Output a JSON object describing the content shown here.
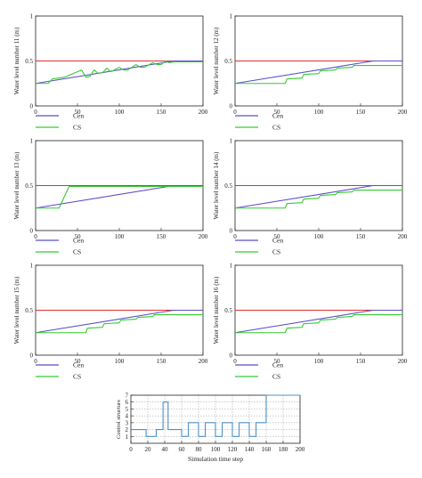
{
  "chart_data": [
    {
      "type": "line",
      "ylabel": "Water level number 11 (m)",
      "xlim": [
        0,
        200
      ],
      "ylim": [
        0,
        1
      ],
      "xticks": [
        0,
        50,
        100,
        150,
        200
      ],
      "yticks": [
        0,
        0.5,
        1
      ],
      "legend_position": "below",
      "series": [
        {
          "name": "",
          "color": "#e03030",
          "x": [
            0,
            200
          ],
          "y": [
            0.5,
            0.5
          ]
        },
        {
          "name": "Cen",
          "color": "#5a4fc8",
          "x": [
            0,
            165,
            200
          ],
          "y": [
            0.25,
            0.5,
            0.5
          ]
        },
        {
          "name": "CS",
          "color": "#33cc33",
          "x": [
            0,
            15,
            20,
            35,
            45,
            50,
            55,
            60,
            65,
            70,
            75,
            80,
            85,
            90,
            100,
            105,
            110,
            120,
            125,
            130,
            140,
            145,
            150,
            155,
            160,
            165,
            200
          ],
          "y": [
            0.25,
            0.25,
            0.3,
            0.32,
            0.36,
            0.38,
            0.4,
            0.32,
            0.33,
            0.4,
            0.36,
            0.37,
            0.42,
            0.38,
            0.43,
            0.4,
            0.4,
            0.46,
            0.43,
            0.43,
            0.48,
            0.46,
            0.46,
            0.5,
            0.48,
            0.49,
            0.49
          ]
        }
      ]
    },
    {
      "type": "line",
      "ylabel": "Water level number 12 (m)",
      "xlim": [
        0,
        200
      ],
      "ylim": [
        0,
        1
      ],
      "xticks": [
        0,
        50,
        100,
        150,
        200
      ],
      "yticks": [
        0,
        0.5,
        1
      ],
      "legend_position": "below",
      "series": [
        {
          "name": "",
          "color": "#e03030",
          "x": [
            0,
            200
          ],
          "y": [
            0.5,
            0.5
          ]
        },
        {
          "name": "Cen",
          "color": "#5a4fc8",
          "x": [
            0,
            165,
            200
          ],
          "y": [
            0.25,
            0.5,
            0.5
          ]
        },
        {
          "name": "CS",
          "color": "#33cc33",
          "x": [
            0,
            60,
            62,
            80,
            82,
            100,
            102,
            120,
            122,
            140,
            142,
            160,
            162,
            200
          ],
          "y": [
            0.25,
            0.25,
            0.3,
            0.31,
            0.35,
            0.36,
            0.39,
            0.4,
            0.42,
            0.43,
            0.45,
            0.45,
            0.45,
            0.45
          ]
        }
      ]
    },
    {
      "type": "line",
      "ylabel": "Water level number 13 (m)",
      "xlim": [
        0,
        200
      ],
      "ylim": [
        0,
        1
      ],
      "xticks": [
        0,
        50,
        100,
        150,
        200
      ],
      "yticks": [
        0,
        0.5,
        1
      ],
      "legend_position": "below",
      "series": [
        {
          "name": "",
          "color": "#e03030",
          "x": [
            0,
            200
          ],
          "y": [
            0.5,
            0.5
          ]
        },
        {
          "name": "Cen",
          "color": "#5a4fc8",
          "x": [
            0,
            165,
            200
          ],
          "y": [
            0.25,
            0.5,
            0.5
          ]
        },
        {
          "name": "CS",
          "color": "#33cc33",
          "x": [
            0,
            28,
            40,
            200
          ],
          "y": [
            0.25,
            0.25,
            0.49,
            0.49
          ]
        }
      ]
    },
    {
      "type": "line",
      "ylabel": "Water level number 14 (m)",
      "xlim": [
        0,
        200
      ],
      "ylim": [
        0,
        1
      ],
      "xticks": [
        0,
        50,
        100,
        150,
        200
      ],
      "yticks": [
        0,
        0.5,
        1
      ],
      "legend_position": "below",
      "series": [
        {
          "name": "",
          "color": "#e03030",
          "x": [
            0,
            200
          ],
          "y": [
            0.5,
            0.5
          ]
        },
        {
          "name": "Cen",
          "color": "#5a4fc8",
          "x": [
            0,
            165,
            200
          ],
          "y": [
            0.25,
            0.5,
            0.5
          ]
        },
        {
          "name": "CS",
          "color": "#33cc33",
          "x": [
            0,
            60,
            62,
            80,
            82,
            100,
            102,
            120,
            122,
            140,
            142,
            160,
            162,
            200
          ],
          "y": [
            0.25,
            0.25,
            0.3,
            0.31,
            0.35,
            0.36,
            0.39,
            0.4,
            0.42,
            0.43,
            0.45,
            0.45,
            0.45,
            0.45
          ]
        }
      ]
    },
    {
      "type": "line",
      "ylabel": "Water level number 15 (m)",
      "xlim": [
        0,
        200
      ],
      "ylim": [
        0,
        1
      ],
      "xticks": [
        0,
        50,
        100,
        150,
        200
      ],
      "yticks": [
        0,
        0.5,
        1
      ],
      "legend_position": "below",
      "series": [
        {
          "name": "",
          "color": "#e03030",
          "x": [
            0,
            200
          ],
          "y": [
            0.5,
            0.5
          ]
        },
        {
          "name": "Cen",
          "color": "#5a4fc8",
          "x": [
            0,
            165,
            200
          ],
          "y": [
            0.25,
            0.5,
            0.5
          ]
        },
        {
          "name": "CS",
          "color": "#33cc33",
          "x": [
            0,
            60,
            62,
            80,
            82,
            100,
            102,
            120,
            122,
            140,
            142,
            160,
            162,
            200
          ],
          "y": [
            0.25,
            0.25,
            0.3,
            0.31,
            0.35,
            0.36,
            0.39,
            0.4,
            0.42,
            0.43,
            0.45,
            0.45,
            0.45,
            0.45
          ]
        }
      ]
    },
    {
      "type": "line",
      "ylabel": "Water level number 16 (m)",
      "xlim": [
        0,
        200
      ],
      "ylim": [
        0,
        1
      ],
      "xticks": [
        0,
        50,
        100,
        150,
        200
      ],
      "yticks": [
        0,
        0.5,
        1
      ],
      "legend_position": "below",
      "series": [
        {
          "name": "",
          "color": "#e03030",
          "x": [
            0,
            200
          ],
          "y": [
            0.5,
            0.5
          ]
        },
        {
          "name": "Cen",
          "color": "#5a4fc8",
          "x": [
            0,
            165,
            200
          ],
          "y": [
            0.25,
            0.5,
            0.5
          ]
        },
        {
          "name": "CS",
          "color": "#33cc33",
          "x": [
            0,
            60,
            62,
            80,
            82,
            100,
            102,
            120,
            122,
            140,
            142,
            160,
            162,
            200
          ],
          "y": [
            0.25,
            0.25,
            0.3,
            0.31,
            0.35,
            0.36,
            0.39,
            0.4,
            0.42,
            0.43,
            0.45,
            0.45,
            0.45,
            0.45
          ]
        }
      ]
    },
    {
      "type": "line",
      "ylabel": "Control structure",
      "xlabel": "Simulation time step",
      "xlim": [
        0,
        200
      ],
      "ylim": [
        0,
        7
      ],
      "xticks": [
        0,
        20,
        40,
        60,
        80,
        100,
        120,
        140,
        160,
        180,
        200
      ],
      "yticks": [
        1,
        2,
        3,
        4,
        5,
        6,
        7
      ],
      "grid": true,
      "series": [
        {
          "name": "",
          "color": "#4a90c8",
          "step": true,
          "x": [
            0,
            18,
            30,
            38,
            44,
            60,
            68,
            80,
            88,
            100,
            108,
            120,
            128,
            140,
            148,
            160,
            200
          ],
          "y": [
            2,
            1,
            2,
            6,
            2,
            1,
            3,
            1,
            3,
            1,
            3,
            1,
            3,
            1,
            3,
            7,
            7
          ]
        }
      ]
    }
  ]
}
